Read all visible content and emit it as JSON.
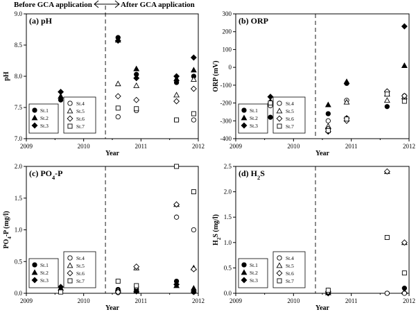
{
  "header": {
    "before_label": "Before GCA application",
    "after_label": "After GCA application"
  },
  "chart_data": [
    {
      "id": "ph",
      "type": "scatter",
      "title": "(a) pH",
      "xlabel": "Year",
      "ylabel": "pH",
      "xlim": [
        2009,
        2012
      ],
      "xticks": [
        "2009",
        "2010",
        "2011",
        "2012"
      ],
      "ylim": [
        7.0,
        9.0
      ],
      "yticks": [
        "7.0",
        "7.5",
        "8.0",
        "8.5",
        "9.0"
      ],
      "vline_x": 2010.38,
      "legend_left": [
        "St.1",
        "St.2",
        "St.3"
      ],
      "legend_right": [
        "St.4",
        "St.5",
        "St.6",
        "St.7"
      ],
      "series": [
        {
          "name": "St.1",
          "marker": "circle-filled",
          "points": [
            [
              2009.6,
              7.62
            ],
            [
              2010.6,
              8.62
            ],
            [
              2010.92,
              8.03
            ],
            [
              2011.62,
              7.9
            ],
            [
              2011.92,
              8.0
            ]
          ]
        },
        {
          "name": "St.2",
          "marker": "triangle-filled",
          "points": [
            [
              2009.6,
              7.68
            ],
            [
              2010.6,
              8.58
            ],
            [
              2010.92,
              8.12
            ],
            [
              2011.62,
              7.96
            ],
            [
              2011.92,
              8.1
            ]
          ]
        },
        {
          "name": "St.3",
          "marker": "diamond-filled",
          "points": [
            [
              2009.6,
              7.75
            ],
            [
              2010.6,
              8.57
            ],
            [
              2010.92,
              7.97
            ],
            [
              2011.62,
              8.0
            ],
            [
              2011.92,
              8.3
            ]
          ]
        },
        {
          "name": "St.4",
          "marker": "circle-open",
          "points": [
            [
              2010.6,
              7.35
            ],
            [
              2010.92,
              7.45
            ],
            [
              2011.62,
              7.3
            ],
            [
              2011.92,
              7.3
            ]
          ]
        },
        {
          "name": "St.5",
          "marker": "triangle-open",
          "points": [
            [
              2010.6,
              7.88
            ],
            [
              2010.92,
              7.85
            ],
            [
              2011.62,
              7.7
            ],
            [
              2011.92,
              7.95
            ]
          ]
        },
        {
          "name": "St.6",
          "marker": "diamond-open",
          "points": [
            [
              2010.6,
              7.68
            ],
            [
              2010.92,
              7.62
            ],
            [
              2011.62,
              7.6
            ],
            [
              2011.92,
              7.8
            ]
          ]
        },
        {
          "name": "St.7",
          "marker": "square-open",
          "points": [
            [
              2010.6,
              7.49
            ],
            [
              2010.92,
              7.48
            ],
            [
              2011.62,
              7.3
            ],
            [
              2011.92,
              7.4
            ]
          ]
        }
      ]
    },
    {
      "id": "orp",
      "type": "scatter",
      "title": "(b) ORP",
      "xlabel": "Year",
      "ylabel": "ORP (mV)",
      "xlim": [
        2009,
        2012
      ],
      "xticks": [
        "2009",
        "2010",
        "2011",
        "2012"
      ],
      "ylim": [
        -400,
        300
      ],
      "yticks": [
        "-400",
        "-300",
        "-200",
        "-100",
        "0",
        "100",
        "200",
        "300"
      ],
      "vline_x": 2010.38,
      "legend_left": [
        "St.1",
        "St.2",
        "St.3"
      ],
      "legend_right": [
        "St.4",
        "St.5",
        "St.6",
        "St.7"
      ],
      "series": [
        {
          "name": "St.1",
          "marker": "circle-filled",
          "points": [
            [
              2009.6,
              -280
            ],
            [
              2010.6,
              -260
            ],
            [
              2010.92,
              -90
            ],
            [
              2011.62,
              -220
            ],
            [
              2011.92,
              -160
            ]
          ]
        },
        {
          "name": "St.2",
          "marker": "triangle-filled",
          "points": [
            [
              2009.6,
              -190
            ],
            [
              2010.6,
              -210
            ],
            [
              2010.92,
              -80
            ],
            [
              2011.62,
              -150
            ],
            [
              2011.92,
              10
            ]
          ]
        },
        {
          "name": "St.3",
          "marker": "diamond-filled",
          "points": [
            [
              2009.6,
              -165
            ],
            [
              2010.6,
              -360
            ],
            [
              2010.92,
              -285
            ],
            [
              2011.62,
              -135
            ],
            [
              2011.92,
              230
            ]
          ]
        },
        {
          "name": "St.4",
          "marker": "circle-open",
          "points": [
            [
              2009.6,
              -215
            ],
            [
              2010.6,
              -300
            ],
            [
              2010.92,
              -185
            ],
            [
              2011.62,
              -140
            ],
            [
              2011.92,
              -175
            ]
          ]
        },
        {
          "name": "St.5",
          "marker": "triangle-open",
          "points": [
            [
              2010.6,
              -330
            ],
            [
              2010.92,
              -195
            ],
            [
              2011.62,
              -185
            ],
            [
              2011.92,
              -165
            ]
          ]
        },
        {
          "name": "St.6",
          "marker": "diamond-open",
          "points": [
            [
              2010.6,
              -345
            ],
            [
              2010.92,
              -300
            ],
            [
              2011.62,
              -135
            ],
            [
              2011.92,
              -160
            ]
          ]
        },
        {
          "name": "St.7",
          "marker": "square-open",
          "points": [
            [
              2009.6,
              -200
            ],
            [
              2010.6,
              -355
            ],
            [
              2010.92,
              -290
            ],
            [
              2011.62,
              -150
            ],
            [
              2011.92,
              -190
            ]
          ]
        }
      ]
    },
    {
      "id": "po4",
      "type": "scatter",
      "title": "(c) PO",
      "title_sub": "4",
      "title_suffix": "-P",
      "xlabel": "Year",
      "ylabel": "PO",
      "ylabel_sub": "4",
      "ylabel_suffix": "-P (mg/l)",
      "xlim": [
        2009,
        2012
      ],
      "xticks": [
        "2009",
        "2010",
        "2011",
        "2012"
      ],
      "ylim": [
        0.0,
        2.0
      ],
      "yticks": [
        "0.0",
        "0.5",
        "1.0",
        "1.5",
        "2.0"
      ],
      "vline_x": 2010.38,
      "legend_left": [
        "St.1",
        "St.2",
        "St.3"
      ],
      "legend_right": [
        "St.4",
        "St.5",
        "St.6",
        "St.7"
      ],
      "series": [
        {
          "name": "St.1",
          "marker": "circle-filled",
          "points": [
            [
              2009.6,
              0.05
            ],
            [
              2010.6,
              0.06
            ],
            [
              2010.92,
              0.06
            ],
            [
              2011.62,
              0.19
            ],
            [
              2011.92,
              0.02
            ]
          ]
        },
        {
          "name": "St.2",
          "marker": "triangle-filled",
          "points": [
            [
              2009.6,
              0.08
            ],
            [
              2010.6,
              0.05
            ],
            [
              2010.92,
              0.04
            ],
            [
              2011.62,
              0.12
            ],
            [
              2011.92,
              0.08
            ]
          ]
        },
        {
          "name": "St.3",
          "marker": "diamond-filled",
          "points": [
            [
              2009.6,
              0.1
            ],
            [
              2010.6,
              0.04
            ],
            [
              2010.92,
              0.03
            ],
            [
              2011.62,
              0.14
            ],
            [
              2011.92,
              0.02
            ]
          ]
        },
        {
          "name": "St.4",
          "marker": "circle-open",
          "points": [
            [
              2010.6,
              0.01
            ],
            [
              2010.92,
              0.1
            ],
            [
              2011.62,
              1.2
            ],
            [
              2011.92,
              1.0
            ]
          ]
        },
        {
          "name": "St.5",
          "marker": "triangle-open",
          "points": [
            [
              2010.6,
              0.05
            ],
            [
              2010.92,
              0.4
            ],
            [
              2011.62,
              1.4
            ],
            [
              2011.92,
              0.4
            ]
          ]
        },
        {
          "name": "St.6",
          "marker": "diamond-open",
          "points": [
            [
              2010.6,
              0.02
            ],
            [
              2010.92,
              0.42
            ],
            [
              2011.62,
              1.4
            ],
            [
              2011.92,
              0.38
            ]
          ]
        },
        {
          "name": "St.7",
          "marker": "square-open",
          "points": [
            [
              2009.6,
              0.02
            ],
            [
              2010.6,
              0.19
            ],
            [
              2010.92,
              0.12
            ],
            [
              2011.62,
              2.0
            ],
            [
              2011.92,
              1.6
            ]
          ]
        }
      ]
    },
    {
      "id": "h2s",
      "type": "scatter",
      "title": "(d) H",
      "title_sub": "2",
      "title_suffix": "S",
      "xlabel": "Year",
      "ylabel": "H",
      "ylabel_sub": "2",
      "ylabel_suffix": "S (mg/l)",
      "xlim": [
        2009,
        2012
      ],
      "xticks": [
        "2009",
        "2010",
        "2011",
        "2012"
      ],
      "ylim": [
        0.0,
        2.5
      ],
      "yticks": [
        "0.0",
        "0.5",
        "1.0",
        "1.5",
        "2.0",
        "2.5"
      ],
      "vline_x": 2010.38,
      "legend_left": [
        "St.1",
        "St.2",
        "St.3"
      ],
      "legend_right": [
        "St.4",
        "St.5",
        "St.6",
        "St.7"
      ],
      "series": [
        {
          "name": "St.1",
          "marker": "circle-filled",
          "points": [
            [
              2010.6,
              0.02
            ],
            [
              2011.62,
              0.0
            ],
            [
              2011.92,
              0.1
            ]
          ]
        },
        {
          "name": "St.2",
          "marker": "triangle-filled",
          "points": [
            [
              2010.6,
              0.01
            ],
            [
              2011.92,
              0.03
            ]
          ]
        },
        {
          "name": "St.3",
          "marker": "diamond-filled",
          "points": [
            [
              2010.6,
              0.0
            ],
            [
              2011.92,
              0.01
            ]
          ]
        },
        {
          "name": "St.4",
          "marker": "circle-open",
          "points": [
            [
              2010.6,
              0.04
            ],
            [
              2011.62,
              0.0
            ],
            [
              2011.92,
              0.0
            ]
          ]
        },
        {
          "name": "St.5",
          "marker": "triangle-open",
          "points": [
            [
              2010.6,
              0.05
            ],
            [
              2011.62,
              2.4
            ],
            [
              2011.92,
              1.0
            ]
          ]
        },
        {
          "name": "St.6",
          "marker": "diamond-open",
          "points": [
            [
              2010.6,
              0.03
            ],
            [
              2011.62,
              2.4
            ],
            [
              2011.92,
              1.0
            ]
          ]
        },
        {
          "name": "St.7",
          "marker": "square-open",
          "points": [
            [
              2010.6,
              0.06
            ],
            [
              2011.62,
              1.1
            ],
            [
              2011.92,
              0.4
            ]
          ]
        }
      ]
    }
  ]
}
